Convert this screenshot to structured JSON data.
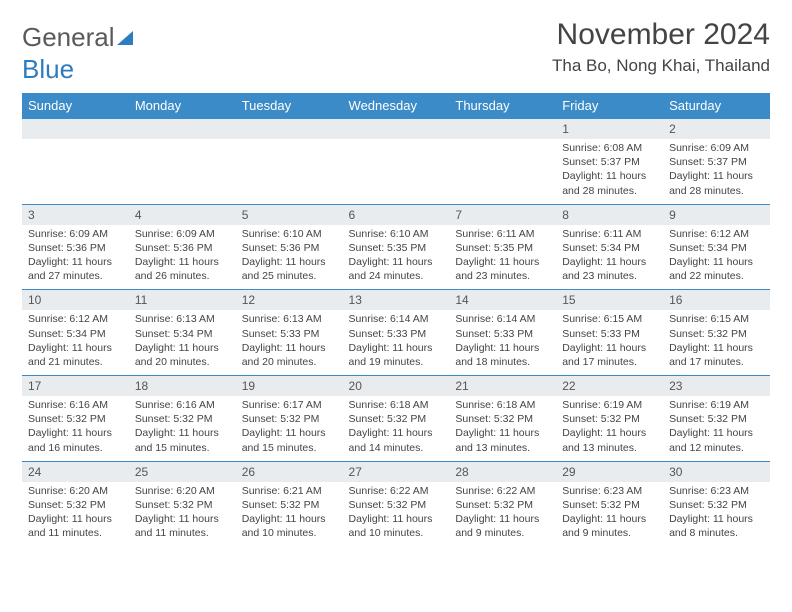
{
  "logo": {
    "text_gray": "General",
    "text_blue": "Blue"
  },
  "title": "November 2024",
  "location": "Tha Bo, Nong Khai, Thailand",
  "colors": {
    "header_bg": "#3b8bc8",
    "header_text": "#ffffff",
    "daynum_bg": "#e9ecef",
    "cell_border": "#3b8bc8",
    "body_text": "#444444",
    "logo_gray": "#5a5a5a",
    "logo_blue": "#2e7cc0"
  },
  "typography": {
    "title_fontsize": 30,
    "location_fontsize": 17,
    "weekday_fontsize": 13,
    "daynum_fontsize": 12,
    "body_fontsize": 10.5
  },
  "weekdays": [
    "Sunday",
    "Monday",
    "Tuesday",
    "Wednesday",
    "Thursday",
    "Friday",
    "Saturday"
  ],
  "grid": [
    [
      {
        "n": "",
        "sr": "",
        "ss": "",
        "dl": ""
      },
      {
        "n": "",
        "sr": "",
        "ss": "",
        "dl": ""
      },
      {
        "n": "",
        "sr": "",
        "ss": "",
        "dl": ""
      },
      {
        "n": "",
        "sr": "",
        "ss": "",
        "dl": ""
      },
      {
        "n": "",
        "sr": "",
        "ss": "",
        "dl": ""
      },
      {
        "n": "1",
        "sr": "Sunrise: 6:08 AM",
        "ss": "Sunset: 5:37 PM",
        "dl": "Daylight: 11 hours and 28 minutes."
      },
      {
        "n": "2",
        "sr": "Sunrise: 6:09 AM",
        "ss": "Sunset: 5:37 PM",
        "dl": "Daylight: 11 hours and 28 minutes."
      }
    ],
    [
      {
        "n": "3",
        "sr": "Sunrise: 6:09 AM",
        "ss": "Sunset: 5:36 PM",
        "dl": "Daylight: 11 hours and 27 minutes."
      },
      {
        "n": "4",
        "sr": "Sunrise: 6:09 AM",
        "ss": "Sunset: 5:36 PM",
        "dl": "Daylight: 11 hours and 26 minutes."
      },
      {
        "n": "5",
        "sr": "Sunrise: 6:10 AM",
        "ss": "Sunset: 5:36 PM",
        "dl": "Daylight: 11 hours and 25 minutes."
      },
      {
        "n": "6",
        "sr": "Sunrise: 6:10 AM",
        "ss": "Sunset: 5:35 PM",
        "dl": "Daylight: 11 hours and 24 minutes."
      },
      {
        "n": "7",
        "sr": "Sunrise: 6:11 AM",
        "ss": "Sunset: 5:35 PM",
        "dl": "Daylight: 11 hours and 23 minutes."
      },
      {
        "n": "8",
        "sr": "Sunrise: 6:11 AM",
        "ss": "Sunset: 5:34 PM",
        "dl": "Daylight: 11 hours and 23 minutes."
      },
      {
        "n": "9",
        "sr": "Sunrise: 6:12 AM",
        "ss": "Sunset: 5:34 PM",
        "dl": "Daylight: 11 hours and 22 minutes."
      }
    ],
    [
      {
        "n": "10",
        "sr": "Sunrise: 6:12 AM",
        "ss": "Sunset: 5:34 PM",
        "dl": "Daylight: 11 hours and 21 minutes."
      },
      {
        "n": "11",
        "sr": "Sunrise: 6:13 AM",
        "ss": "Sunset: 5:34 PM",
        "dl": "Daylight: 11 hours and 20 minutes."
      },
      {
        "n": "12",
        "sr": "Sunrise: 6:13 AM",
        "ss": "Sunset: 5:33 PM",
        "dl": "Daylight: 11 hours and 20 minutes."
      },
      {
        "n": "13",
        "sr": "Sunrise: 6:14 AM",
        "ss": "Sunset: 5:33 PM",
        "dl": "Daylight: 11 hours and 19 minutes."
      },
      {
        "n": "14",
        "sr": "Sunrise: 6:14 AM",
        "ss": "Sunset: 5:33 PM",
        "dl": "Daylight: 11 hours and 18 minutes."
      },
      {
        "n": "15",
        "sr": "Sunrise: 6:15 AM",
        "ss": "Sunset: 5:33 PM",
        "dl": "Daylight: 11 hours and 17 minutes."
      },
      {
        "n": "16",
        "sr": "Sunrise: 6:15 AM",
        "ss": "Sunset: 5:32 PM",
        "dl": "Daylight: 11 hours and 17 minutes."
      }
    ],
    [
      {
        "n": "17",
        "sr": "Sunrise: 6:16 AM",
        "ss": "Sunset: 5:32 PM",
        "dl": "Daylight: 11 hours and 16 minutes."
      },
      {
        "n": "18",
        "sr": "Sunrise: 6:16 AM",
        "ss": "Sunset: 5:32 PM",
        "dl": "Daylight: 11 hours and 15 minutes."
      },
      {
        "n": "19",
        "sr": "Sunrise: 6:17 AM",
        "ss": "Sunset: 5:32 PM",
        "dl": "Daylight: 11 hours and 15 minutes."
      },
      {
        "n": "20",
        "sr": "Sunrise: 6:18 AM",
        "ss": "Sunset: 5:32 PM",
        "dl": "Daylight: 11 hours and 14 minutes."
      },
      {
        "n": "21",
        "sr": "Sunrise: 6:18 AM",
        "ss": "Sunset: 5:32 PM",
        "dl": "Daylight: 11 hours and 13 minutes."
      },
      {
        "n": "22",
        "sr": "Sunrise: 6:19 AM",
        "ss": "Sunset: 5:32 PM",
        "dl": "Daylight: 11 hours and 13 minutes."
      },
      {
        "n": "23",
        "sr": "Sunrise: 6:19 AM",
        "ss": "Sunset: 5:32 PM",
        "dl": "Daylight: 11 hours and 12 minutes."
      }
    ],
    [
      {
        "n": "24",
        "sr": "Sunrise: 6:20 AM",
        "ss": "Sunset: 5:32 PM",
        "dl": "Daylight: 11 hours and 11 minutes."
      },
      {
        "n": "25",
        "sr": "Sunrise: 6:20 AM",
        "ss": "Sunset: 5:32 PM",
        "dl": "Daylight: 11 hours and 11 minutes."
      },
      {
        "n": "26",
        "sr": "Sunrise: 6:21 AM",
        "ss": "Sunset: 5:32 PM",
        "dl": "Daylight: 11 hours and 10 minutes."
      },
      {
        "n": "27",
        "sr": "Sunrise: 6:22 AM",
        "ss": "Sunset: 5:32 PM",
        "dl": "Daylight: 11 hours and 10 minutes."
      },
      {
        "n": "28",
        "sr": "Sunrise: 6:22 AM",
        "ss": "Sunset: 5:32 PM",
        "dl": "Daylight: 11 hours and 9 minutes."
      },
      {
        "n": "29",
        "sr": "Sunrise: 6:23 AM",
        "ss": "Sunset: 5:32 PM",
        "dl": "Daylight: 11 hours and 9 minutes."
      },
      {
        "n": "30",
        "sr": "Sunrise: 6:23 AM",
        "ss": "Sunset: 5:32 PM",
        "dl": "Daylight: 11 hours and 8 minutes."
      }
    ]
  ]
}
